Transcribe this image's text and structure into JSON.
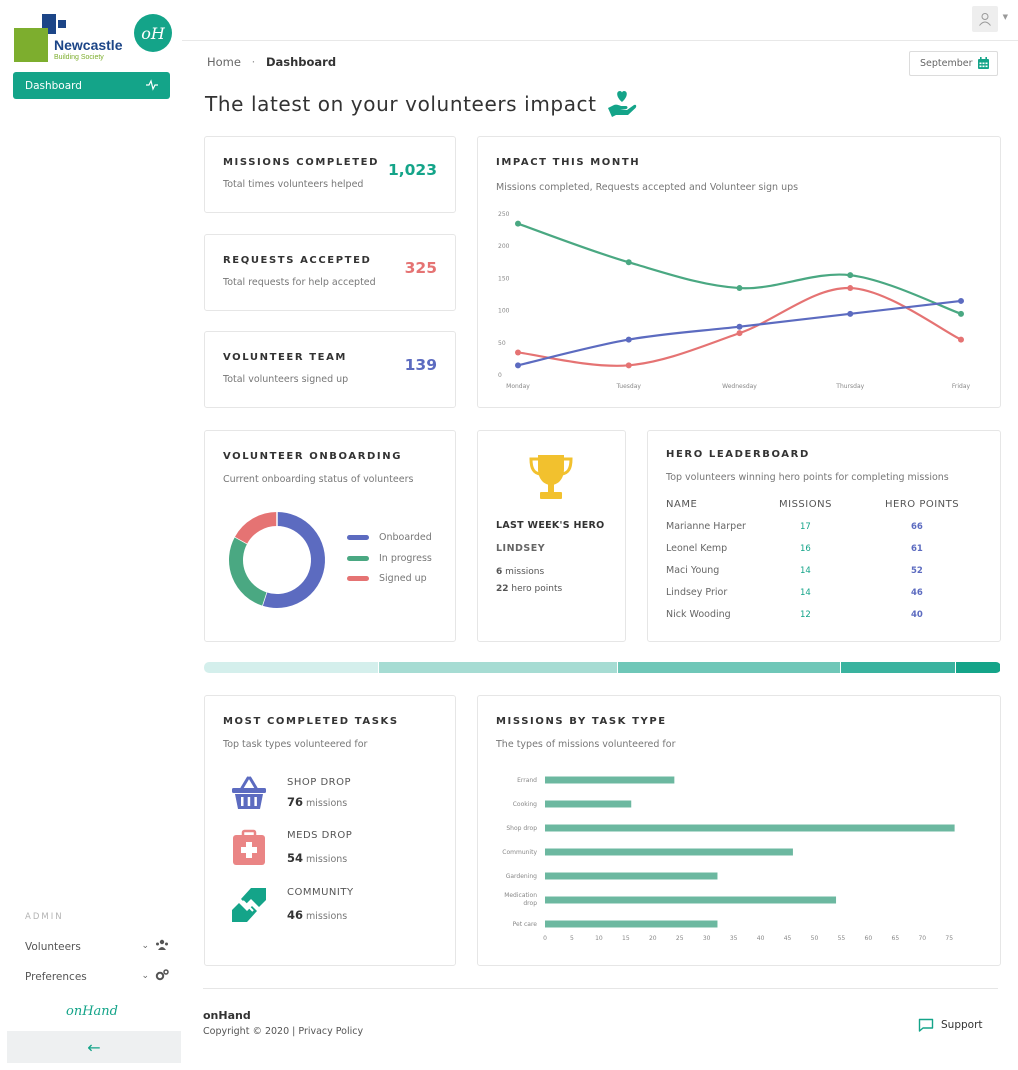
{
  "brand": {
    "name_line1": "Newcastle",
    "name_line2": "Building Society",
    "badge": "oH"
  },
  "sidebar": {
    "active_item": "Dashboard",
    "admin_label": "ADMIN",
    "admin_items": [
      {
        "label": "Volunteers",
        "icon": "users-icon"
      },
      {
        "label": "Preferences",
        "icon": "gears-icon"
      }
    ],
    "footer_logo": "onHand",
    "collapse_glyph": "←"
  },
  "breadcrumb": {
    "home": "Home",
    "separator": "·",
    "current": "Dashboard"
  },
  "month_picker": {
    "value": "September",
    "icon": "calendar-icon"
  },
  "page_title": "The latest on your volunteers impact",
  "colors": {
    "teal": "#14a489",
    "green_line": "#4aa882",
    "purple": "#5c6bc0",
    "coral": "#e57373",
    "gold": "#f2c12e"
  },
  "stats": [
    {
      "title": "MISSIONS COMPLETED",
      "subtitle": "Total times volunteers helped",
      "value": "1,023",
      "color": "#14a489"
    },
    {
      "title": "REQUESTS ACCEPTED",
      "subtitle": "Total requests for help accepted",
      "value": "325",
      "color": "#e57373"
    },
    {
      "title": "VOLUNTEER TEAM",
      "subtitle": "Total volunteers signed up",
      "value": "139",
      "color": "#5c6bc0"
    }
  ],
  "impact_chart": {
    "title": "IMPACT THIS MONTH",
    "subtitle": "Missions completed, Requests accepted and Volunteer sign ups"
  },
  "onboarding": {
    "title": "VOLUNTEER ONBOARDING",
    "subtitle": "Current onboarding status of volunteers",
    "legend": [
      "Onboarded",
      "In progress",
      "Signed up"
    ]
  },
  "hero": {
    "heading": "LAST WEEK'S HERO",
    "name": "LINDSEY",
    "missions_num": "6",
    "missions_text": "missions",
    "points_num": "22",
    "points_text": "hero points"
  },
  "leaderboard": {
    "title": "HERO LEADERBOARD",
    "subtitle": "Top volunteers winning hero points for completing missions",
    "headers": [
      "NAME",
      "MISSIONS",
      "HERO POINTS"
    ],
    "rows": [
      {
        "name": "Marianne Harper",
        "missions": "17",
        "points": "66"
      },
      {
        "name": "Leonel Kemp",
        "missions": "16",
        "points": "61"
      },
      {
        "name": "Maci Young",
        "missions": "14",
        "points": "52"
      },
      {
        "name": "Lindsey Prior",
        "missions": "14",
        "points": "46"
      },
      {
        "name": "Nick Wooding",
        "missions": "12",
        "points": "40"
      }
    ]
  },
  "progress_band": [
    {
      "fraction": 0.22,
      "color": "#d4efec"
    },
    {
      "fraction": 0.3,
      "color": "#a6dcd3"
    },
    {
      "fraction": 0.28,
      "color": "#6fc7b8"
    },
    {
      "fraction": 0.145,
      "color": "#3ab39f"
    },
    {
      "fraction": 0.055,
      "color": "#14a489"
    }
  ],
  "tasks": {
    "title": "MOST COMPLETED TASKS",
    "subtitle": "Top task types volunteered for",
    "items": [
      {
        "label": "SHOP DROP",
        "count": "76",
        "unit": "missions",
        "icon": "basket-icon"
      },
      {
        "label": "MEDS DROP",
        "count": "54",
        "unit": "missions",
        "icon": "first-aid-icon"
      },
      {
        "label": "COMMUNITY",
        "count": "46",
        "unit": "missions",
        "icon": "handshake-icon"
      }
    ]
  },
  "missions_by_type": {
    "title": "MISSIONS BY TASK TYPE",
    "subtitle": "The types of missions volunteered for"
  },
  "footer": {
    "brand": "onHand",
    "copyright": "Copyright © 2020 | Privacy Policy",
    "support": "Support"
  },
  "chart_data": [
    {
      "type": "line",
      "categories": [
        "Monday",
        "Tuesday",
        "Wednesday",
        "Thursday",
        "Friday"
      ],
      "ylim": [
        0,
        250
      ],
      "yticks": [
        0,
        50,
        100,
        150,
        200,
        250
      ],
      "series": [
        {
          "values": [
            235,
            175,
            135,
            155,
            95
          ],
          "color": "#4aa882"
        },
        {
          "values": [
            35,
            15,
            65,
            135,
            55
          ],
          "color": "#e57373"
        },
        {
          "values": [
            15,
            55,
            75,
            95,
            115
          ],
          "color": "#5c6bc0"
        }
      ]
    },
    {
      "type": "pie",
      "categories": [
        "Onboarded",
        "In progress",
        "Signed up"
      ],
      "values": [
        55,
        28,
        17
      ],
      "colors": [
        "#5c6bc0",
        "#4aa882",
        "#e57373"
      ]
    },
    {
      "type": "bar",
      "orientation": "horizontal",
      "categories": [
        "Errand",
        "Cooking",
        "Shop drop",
        "Community",
        "Gardening",
        "Medication drop",
        "Pet care"
      ],
      "category_lines": [
        [
          "Errand"
        ],
        [
          "Cooking"
        ],
        [
          "Shop drop"
        ],
        [
          "Community"
        ],
        [
          "Gardening"
        ],
        [
          "Medication",
          "drop"
        ],
        [
          "Pet care"
        ]
      ],
      "values": [
        24,
        16,
        76,
        46,
        32,
        54,
        32
      ],
      "xlim": [
        0,
        77
      ],
      "xticks": [
        0,
        5,
        10,
        15,
        20,
        25,
        30,
        35,
        40,
        45,
        50,
        55,
        60,
        65,
        70,
        75
      ],
      "color": "#6cb8a0"
    }
  ]
}
